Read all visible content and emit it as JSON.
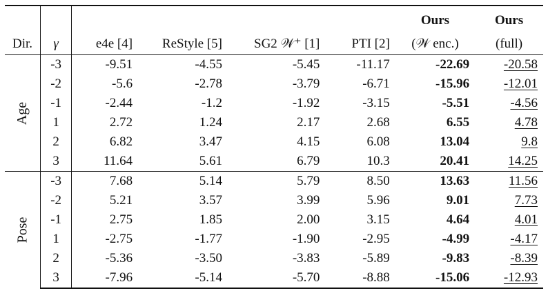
{
  "header": {
    "dir": "Dir.",
    "gamma": "γ",
    "e4e": "e4e [4]",
    "restyle": "ReStyle [5]",
    "sg2": "SG2 𝒲⁺ [1]",
    "pti": "PTI [2]",
    "ours_w_top": "Ours",
    "ours_w_bottom": "(𝒲 enc.)",
    "ours_full_top": "Ours",
    "ours_full_bottom": "(full)"
  },
  "groups": [
    {
      "label": "Age",
      "rows": [
        {
          "gamma": "-3",
          "e4e": "-9.51",
          "restyle": "-4.55",
          "sg2": "-5.45",
          "pti": "-11.17",
          "ours_w": "-22.69",
          "ours_full": "-20.58"
        },
        {
          "gamma": "-2",
          "e4e": "-5.6",
          "restyle": "-2.78",
          "sg2": "-3.79",
          "pti": "-6.71",
          "ours_w": "-15.96",
          "ours_full": "-12.01"
        },
        {
          "gamma": "-1",
          "e4e": "-2.44",
          "restyle": "-1.2",
          "sg2": "-1.92",
          "pti": "-3.15",
          "ours_w": "-5.51",
          "ours_full": "-4.56"
        },
        {
          "gamma": "1",
          "e4e": "2.72",
          "restyle": "1.24",
          "sg2": "2.17",
          "pti": "2.68",
          "ours_w": "6.55",
          "ours_full": "4.78"
        },
        {
          "gamma": "2",
          "e4e": "6.82",
          "restyle": "3.47",
          "sg2": "4.15",
          "pti": "6.08",
          "ours_w": "13.04",
          "ours_full": "9.8"
        },
        {
          "gamma": "3",
          "e4e": "11.64",
          "restyle": "5.61",
          "sg2": "6.79",
          "pti": "10.3",
          "ours_w": "20.41",
          "ours_full": "14.25"
        }
      ]
    },
    {
      "label": "Pose",
      "rows": [
        {
          "gamma": "-3",
          "e4e": "7.68",
          "restyle": "5.14",
          "sg2": "5.79",
          "pti": "8.50",
          "ours_w": "13.63",
          "ours_full": "11.56"
        },
        {
          "gamma": "-2",
          "e4e": "5.21",
          "restyle": "3.57",
          "sg2": "3.99",
          "pti": "5.96",
          "ours_w": "9.01",
          "ours_full": "7.73"
        },
        {
          "gamma": "-1",
          "e4e": "2.75",
          "restyle": "1.85",
          "sg2": "2.00",
          "pti": "3.15",
          "ours_w": "4.64",
          "ours_full": "4.01"
        },
        {
          "gamma": "1",
          "e4e": "-2.75",
          "restyle": "-1.77",
          "sg2": "-1.90",
          "pti": "-2.95",
          "ours_w": "-4.99",
          "ours_full": "-4.17"
        },
        {
          "gamma": "2",
          "e4e": "-5.36",
          "restyle": "-3.50",
          "sg2": "-3.83",
          "pti": "-5.89",
          "ours_w": "-9.83",
          "ours_full": "-8.39"
        },
        {
          "gamma": "3",
          "e4e": "-7.96",
          "restyle": "-5.14",
          "sg2": "-5.70",
          "pti": "-8.88",
          "ours_w": "-15.06",
          "ours_full": "-12.93"
        }
      ]
    }
  ]
}
